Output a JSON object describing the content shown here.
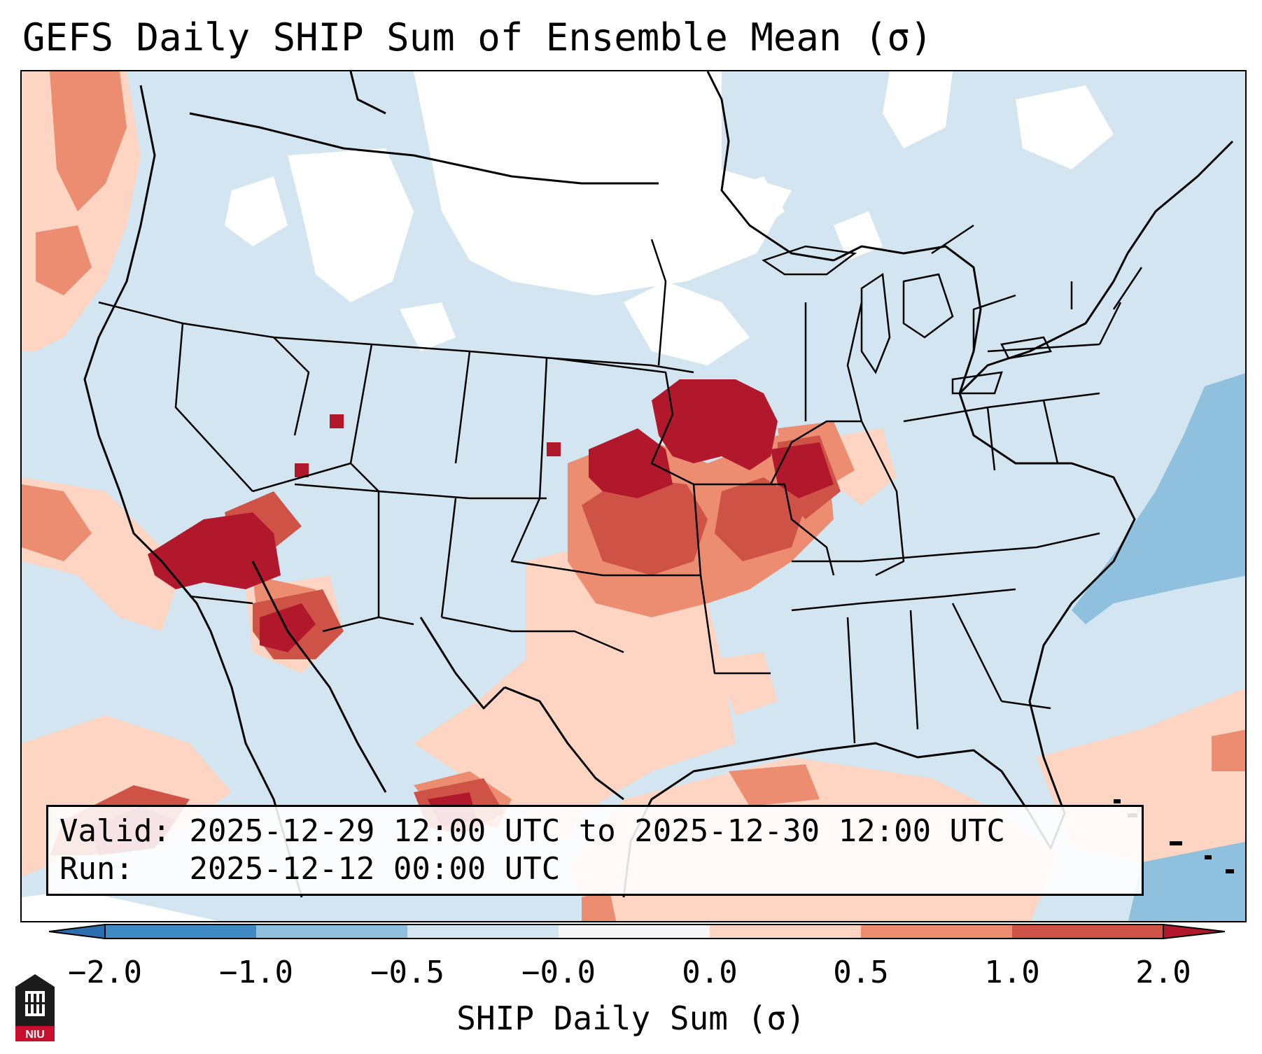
{
  "title": "GEFS Daily SHIP Sum of Ensemble Mean (σ)",
  "info": {
    "valid_label": "Valid:",
    "valid_value": "2025-12-29 12:00 UTC to 2025-12-30 12:00 UTC",
    "run_label": "Run:",
    "run_value": "2025-12-12 00:00 UTC"
  },
  "colorbar": {
    "label": "SHIP Daily Sum (σ)",
    "ticks": [
      "−2.0",
      "−1.0",
      "−0.5",
      "−0.0",
      "0.0",
      "0.5",
      "1.0",
      "2.0"
    ],
    "colors": [
      "#3f8ac2",
      "#8fc1de",
      "#d2e5f0",
      "#f7f7f7",
      "#fdd5c2",
      "#ec8d71",
      "#cf5246",
      "#b2182b"
    ]
  },
  "legend_classes": {
    "neutral_light": "#d2e5f0",
    "pos_light": "#fdd5c2",
    "pos_mid": "#ec8d71",
    "pos_high": "#cf5246",
    "pos_max": "#b2182b",
    "neg_mid": "#8fc1de",
    "blank": "#ffffff"
  },
  "logo": {
    "text": "NIU",
    "color": "#c8102e"
  }
}
